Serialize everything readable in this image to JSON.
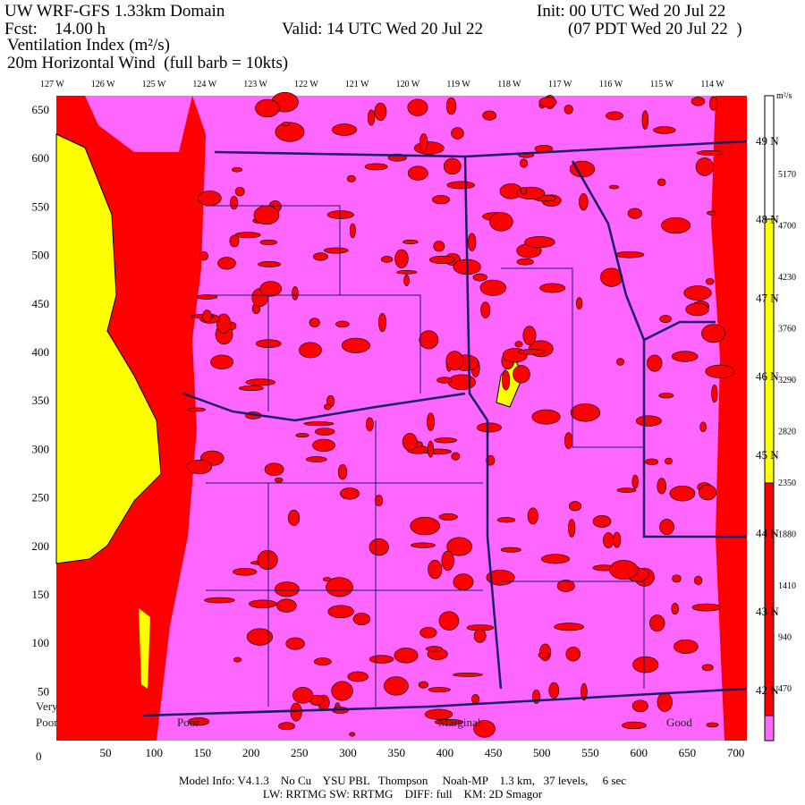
{
  "header": {
    "title": "UW WRF-GFS 1.33km Domain",
    "init": "Init: 00 UTC Wed 20 Jul 22",
    "fcst": "Fcst:    14.00 h",
    "valid": "Valid: 14 UTC Wed 20 Jul 22",
    "local_time": "(07 PDT Wed 20 Jul 22  )",
    "field": "Ventilation Index (m²/s)",
    "wind": "20m Horizontal Wind  (full barb = 10kts)"
  },
  "longitudes": [
    "127 W",
    "126 W",
    "125 W",
    "124 W",
    "123 W",
    "122 W",
    "121 W",
    "120 W",
    "119 W",
    "118 W",
    "117 W",
    "116 W",
    "115 W",
    "114 W"
  ],
  "latitudes": [
    "49 N",
    "48 N",
    "47 N",
    "46 N",
    "45 N",
    "44 N",
    "43 N",
    "42 N"
  ],
  "x_axis": {
    "origin": "0",
    "labels": [
      "50",
      "100",
      "150",
      "200",
      "250",
      "300",
      "350",
      "400",
      "450",
      "500",
      "550",
      "600",
      "650",
      "700"
    ]
  },
  "y_axis": {
    "labels": [
      "650",
      "600",
      "550",
      "500",
      "450",
      "400",
      "350",
      "300",
      "250",
      "200",
      "150",
      "100",
      "50"
    ]
  },
  "colorbar": {
    "unit": "m²/s",
    "labels": [
      "5170",
      "4700",
      "4230",
      "3760",
      "3290",
      "2820",
      "2350",
      "1880",
      "1410",
      "940",
      "470"
    ]
  },
  "map_labels": {
    "very": "Very",
    "poor_left": "Poor",
    "poor": "Poor",
    "marginal": "Marginal",
    "good": "Good"
  },
  "footer": {
    "line1": "Model Info: V4.1.3    No Cu    YSU PBL   Thompson     Noah-MP    1.3 km,   37 levels,     6 sec",
    "line2": "LW: RRTMG SW: RRTMG    DIFF: full    KM: 2D Smagor"
  }
}
